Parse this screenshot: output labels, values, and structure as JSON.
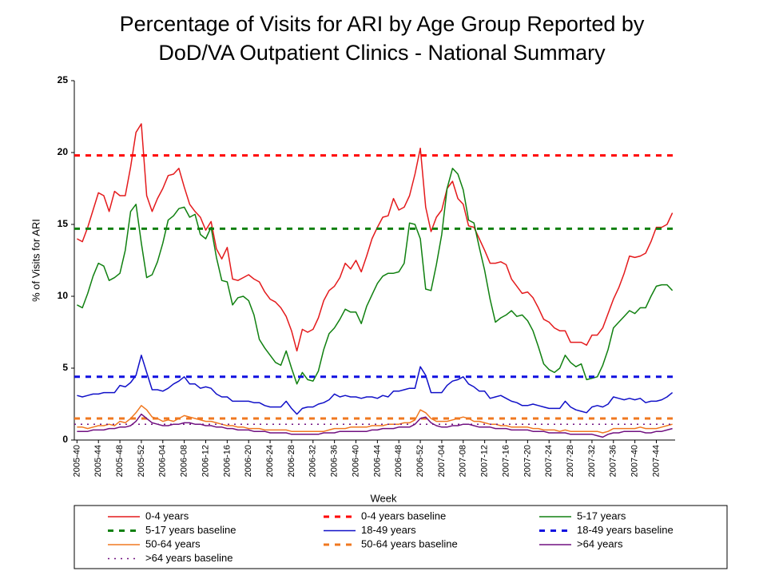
{
  "chart_data": {
    "type": "line",
    "title": [
      "Percentage of Visits for ARI by Age Group Reported by",
      "DoD/VA Outpatient Clinics - National Summary"
    ],
    "xlabel": "Week",
    "ylabel": "% of Visits for ARI",
    "ylim": [
      0,
      25
    ],
    "yticks": [
      0,
      5,
      10,
      15,
      20,
      25
    ],
    "grid": false,
    "legend": "bottom",
    "categories": [
      "2005-40",
      null,
      null,
      null,
      "2005-44",
      null,
      null,
      null,
      "2005-48",
      null,
      null,
      null,
      "2005-52",
      null,
      null,
      null,
      "2006-04",
      null,
      null,
      null,
      "2006-08",
      null,
      null,
      null,
      "2006-12",
      null,
      null,
      null,
      "2006-16",
      null,
      null,
      null,
      "2006-20",
      null,
      null,
      null,
      "2006-24",
      null,
      null,
      null,
      "2006-28",
      null,
      null,
      null,
      "2006-32",
      null,
      null,
      null,
      "2006-36",
      null,
      null,
      null,
      "2006-40",
      null,
      null,
      null,
      "2006-44",
      null,
      null,
      null,
      "2006-48",
      null,
      null,
      null,
      "2006-52",
      null,
      null,
      null,
      "2007-04",
      null,
      null,
      null,
      "2007-08",
      null,
      null,
      null,
      "2007-12",
      null,
      null,
      null,
      "2007-16",
      null,
      null,
      null,
      "2007-20",
      null,
      null,
      null,
      "2007-24",
      null,
      null,
      null,
      "2007-28",
      null,
      null,
      null,
      "2007-32",
      null,
      null,
      null,
      "2007-36",
      null,
      null,
      null,
      "2007-40",
      null,
      null,
      null,
      "2007-44",
      null,
      null,
      null
    ],
    "series": [
      {
        "name": "0-4 years",
        "color": "#e41a1c",
        "values": [
          14.0,
          13.8,
          14.8,
          16.0,
          17.2,
          17.0,
          15.9,
          17.3,
          17.0,
          17.0,
          19.0,
          21.4,
          22.0,
          17.0,
          15.9,
          16.8,
          17.5,
          18.4,
          18.5,
          18.9,
          17.6,
          16.4,
          15.9,
          15.5,
          14.6,
          15.2,
          13.3,
          12.6,
          13.4,
          11.2,
          11.1,
          11.3,
          11.5,
          11.2,
          11.0,
          10.3,
          9.8,
          9.6,
          9.2,
          8.6,
          7.6,
          6.2,
          7.7,
          7.5,
          7.7,
          8.5,
          9.7,
          10.4,
          10.7,
          11.3,
          12.3,
          11.9,
          12.5,
          11.7,
          12.8,
          14.0,
          14.8,
          15.5,
          15.6,
          16.8,
          16.0,
          16.2,
          17.0,
          18.5,
          20.3,
          16.2,
          14.5,
          15.5,
          16.0,
          17.5,
          18.0,
          16.8,
          16.4,
          14.9,
          14.8,
          14.0,
          13.2,
          12.3,
          12.3,
          12.4,
          12.2,
          11.2,
          10.7,
          10.2,
          10.3,
          9.9,
          9.2,
          8.4,
          8.2,
          7.8,
          7.6,
          7.6,
          6.8,
          6.8,
          6.8,
          6.6,
          7.3,
          7.3,
          7.8,
          8.8,
          9.8,
          10.6,
          11.6,
          12.8,
          12.7,
          12.8,
          13.0,
          13.8,
          14.8,
          14.8,
          15.0,
          15.8
        ]
      },
      {
        "name": "0-4 years baseline",
        "color": "#ff0000",
        "value": 19.8,
        "dash": "dashed"
      },
      {
        "name": "5-17 years",
        "color": "#108010",
        "values": [
          9.4,
          9.2,
          10.2,
          11.4,
          12.3,
          12.1,
          11.1,
          11.3,
          11.6,
          13.2,
          15.9,
          16.4,
          13.7,
          11.3,
          11.5,
          12.4,
          13.7,
          15.3,
          15.6,
          16.1,
          16.2,
          15.5,
          15.7,
          14.3,
          14.0,
          14.8,
          12.7,
          11.1,
          11.0,
          9.4,
          9.9,
          10.0,
          9.7,
          8.7,
          7.0,
          6.4,
          5.9,
          5.4,
          5.2,
          6.2,
          5.0,
          3.9,
          4.7,
          4.2,
          4.1,
          4.8,
          6.3,
          7.4,
          7.8,
          8.4,
          9.1,
          8.9,
          8.9,
          8.1,
          9.3,
          10.1,
          10.9,
          11.4,
          11.6,
          11.6,
          11.7,
          12.3,
          15.1,
          15.0,
          14.0,
          10.5,
          10.4,
          12.2,
          14.3,
          17.5,
          18.9,
          18.5,
          17.4,
          15.3,
          15.1,
          13.4,
          11.8,
          9.8,
          8.2,
          8.5,
          8.7,
          9.0,
          8.6,
          8.7,
          8.3,
          7.6,
          6.5,
          5.3,
          4.9,
          4.7,
          5.0,
          5.9,
          5.4,
          5.1,
          5.3,
          4.2,
          4.3,
          4.4,
          5.2,
          6.3,
          7.8,
          8.2,
          8.6,
          9.0,
          8.8,
          9.2,
          9.2,
          10.0,
          10.7,
          10.8,
          10.8,
          10.4
        ]
      },
      {
        "name": "5-17 years baseline",
        "color": "#108010",
        "value": 14.7,
        "dash": "dashed"
      },
      {
        "name": "18-49 years",
        "color": "#1010c8",
        "values": [
          3.1,
          3.0,
          3.1,
          3.2,
          3.2,
          3.3,
          3.3,
          3.3,
          3.8,
          3.7,
          4.0,
          4.5,
          5.9,
          4.7,
          3.5,
          3.5,
          3.4,
          3.6,
          3.9,
          4.1,
          4.4,
          3.9,
          3.9,
          3.6,
          3.7,
          3.6,
          3.2,
          3.0,
          3.0,
          2.7,
          2.7,
          2.7,
          2.7,
          2.6,
          2.6,
          2.4,
          2.3,
          2.3,
          2.3,
          2.7,
          2.2,
          1.8,
          2.2,
          2.3,
          2.3,
          2.5,
          2.6,
          2.8,
          3.2,
          3.0,
          3.1,
          3.0,
          3.0,
          2.9,
          3.0,
          3.0,
          2.9,
          3.1,
          3.0,
          3.4,
          3.4,
          3.5,
          3.6,
          3.6,
          5.1,
          4.5,
          3.3,
          3.3,
          3.3,
          3.8,
          4.1,
          4.2,
          4.4,
          3.9,
          3.7,
          3.4,
          3.4,
          2.9,
          3.0,
          3.1,
          2.9,
          2.7,
          2.6,
          2.4,
          2.4,
          2.5,
          2.4,
          2.3,
          2.2,
          2.2,
          2.2,
          2.7,
          2.3,
          2.1,
          2.0,
          1.9,
          2.3,
          2.4,
          2.3,
          2.5,
          3.0,
          2.9,
          2.8,
          2.9,
          2.8,
          2.9,
          2.6,
          2.7,
          2.7,
          2.8,
          3.0,
          3.3
        ]
      },
      {
        "name": "18-49 years baseline",
        "color": "#1010e0",
        "value": 4.4,
        "dash": "dashed"
      },
      {
        "name": "50-64 years",
        "color": "#f07820",
        "values": [
          0.9,
          0.9,
          0.8,
          0.9,
          1.0,
          1.0,
          1.1,
          1.0,
          1.3,
          1.2,
          1.5,
          1.9,
          2.4,
          2.1,
          1.6,
          1.5,
          1.3,
          1.4,
          1.3,
          1.5,
          1.7,
          1.6,
          1.5,
          1.4,
          1.3,
          1.3,
          1.2,
          1.1,
          1.0,
          1.0,
          0.9,
          0.9,
          0.8,
          0.8,
          0.8,
          0.7,
          0.7,
          0.7,
          0.7,
          0.7,
          0.6,
          0.6,
          0.6,
          0.6,
          0.6,
          0.6,
          0.6,
          0.7,
          0.8,
          0.8,
          0.8,
          0.9,
          0.9,
          0.9,
          0.9,
          1.0,
          1.0,
          1.0,
          1.1,
          1.1,
          1.1,
          1.2,
          1.2,
          1.4,
          2.1,
          1.9,
          1.5,
          1.3,
          1.3,
          1.3,
          1.4,
          1.5,
          1.6,
          1.5,
          1.3,
          1.3,
          1.2,
          1.1,
          1.1,
          1.0,
          1.0,
          0.9,
          0.9,
          0.9,
          0.9,
          0.8,
          0.8,
          0.7,
          0.7,
          0.7,
          0.6,
          0.7,
          0.6,
          0.6,
          0.6,
          0.6,
          0.6,
          0.6,
          0.5,
          0.6,
          0.8,
          0.8,
          0.8,
          0.8,
          0.8,
          0.9,
          0.8,
          0.8,
          0.8,
          0.9,
          1.0,
          1.1
        ]
      },
      {
        "name": "50-64 years baseline",
        "color": "#f07820",
        "value": 1.5,
        "dash": "dashed"
      },
      {
        "name": ">64 years",
        "color": "#701080",
        "values": [
          0.6,
          0.6,
          0.6,
          0.7,
          0.7,
          0.7,
          0.8,
          0.8,
          0.9,
          0.9,
          1.0,
          1.3,
          1.8,
          1.5,
          1.2,
          1.1,
          1.0,
          1.0,
          1.1,
          1.1,
          1.2,
          1.2,
          1.1,
          1.1,
          1.0,
          1.0,
          0.9,
          0.9,
          0.8,
          0.8,
          0.7,
          0.7,
          0.7,
          0.6,
          0.6,
          0.6,
          0.5,
          0.5,
          0.5,
          0.5,
          0.4,
          0.4,
          0.4,
          0.4,
          0.4,
          0.4,
          0.5,
          0.5,
          0.5,
          0.6,
          0.6,
          0.6,
          0.6,
          0.6,
          0.6,
          0.7,
          0.7,
          0.8,
          0.8,
          0.8,
          0.9,
          0.9,
          0.9,
          1.1,
          1.5,
          1.6,
          1.2,
          1.0,
          0.9,
          0.9,
          1.0,
          1.0,
          1.1,
          1.1,
          1.0,
          0.9,
          0.9,
          0.9,
          0.8,
          0.8,
          0.8,
          0.7,
          0.7,
          0.7,
          0.7,
          0.6,
          0.6,
          0.6,
          0.5,
          0.5,
          0.5,
          0.5,
          0.4,
          0.4,
          0.4,
          0.4,
          0.4,
          0.3,
          0.2,
          0.4,
          0.5,
          0.5,
          0.6,
          0.6,
          0.6,
          0.6,
          0.5,
          0.5,
          0.6,
          0.6,
          0.7,
          0.8
        ]
      },
      {
        "name": ">64 years baseline",
        "color": "#701080",
        "value": 1.1,
        "dash": "dotted"
      }
    ]
  }
}
